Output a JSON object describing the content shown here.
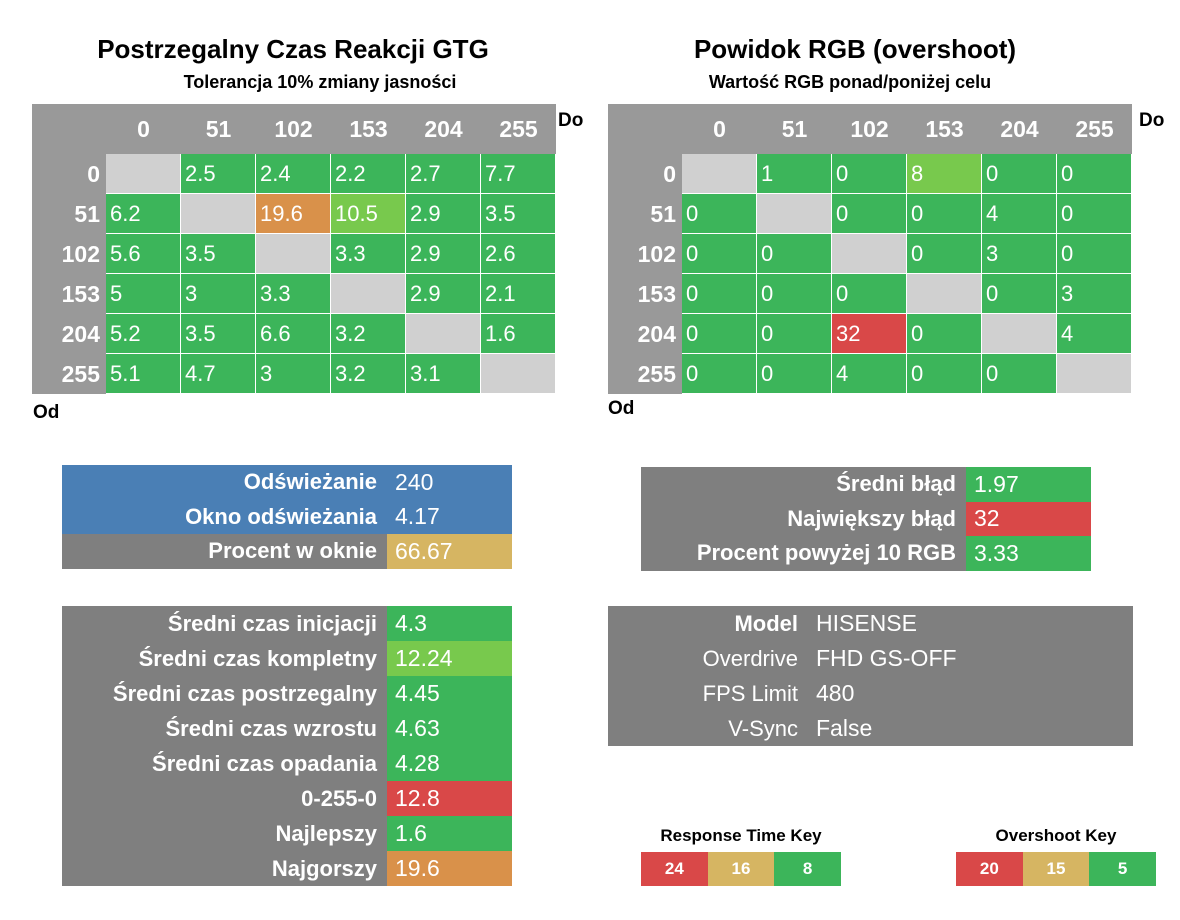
{
  "colors": {
    "green": "#3cb55a",
    "light_green": "#78c94d",
    "orange": "#d9914a",
    "red": "#d94848",
    "yellow": "#d6b562",
    "gray_header": "#999999",
    "gray_panel": "#7f7f7f",
    "diagonal": "#d0d0d0",
    "blue": "#4a7fb5"
  },
  "chart_data": [
    {
      "type": "heatmap",
      "title": "Postrzegalny Czas Reakcji GTG",
      "subtitle": "Tolerancja 10% zmiany jasności",
      "xlabel": "Do",
      "ylabel": "Od",
      "x_categories": [
        "0",
        "51",
        "102",
        "153",
        "204",
        "255"
      ],
      "y_categories": [
        "0",
        "51",
        "102",
        "153",
        "204",
        "255"
      ],
      "values": [
        [
          null,
          2.5,
          2.4,
          2.2,
          2.7,
          7.7
        ],
        [
          6.2,
          null,
          19.6,
          10.5,
          2.9,
          3.5
        ],
        [
          5.6,
          3.5,
          null,
          3.3,
          2.9,
          2.6
        ],
        [
          5,
          3,
          3.3,
          null,
          2.9,
          2.1
        ],
        [
          5.2,
          3.5,
          6.6,
          3.2,
          null,
          1.6
        ],
        [
          5.1,
          4.7,
          3,
          3.2,
          3.1,
          null
        ]
      ],
      "cell_colors": [
        [
          "diagonal",
          "green",
          "green",
          "green",
          "green",
          "green"
        ],
        [
          "green",
          "diagonal",
          "orange",
          "light_green",
          "green",
          "green"
        ],
        [
          "green",
          "green",
          "diagonal",
          "green",
          "green",
          "green"
        ],
        [
          "green",
          "green",
          "green",
          "diagonal",
          "green",
          "green"
        ],
        [
          "green",
          "green",
          "green",
          "green",
          "diagonal",
          "green"
        ],
        [
          "green",
          "green",
          "green",
          "green",
          "green",
          "diagonal"
        ]
      ]
    },
    {
      "type": "heatmap",
      "title": "Powidok RGB (overshoot)",
      "subtitle": "Wartość RGB ponad/poniżej celu",
      "xlabel": "Do",
      "ylabel": "Od",
      "x_categories": [
        "0",
        "51",
        "102",
        "153",
        "204",
        "255"
      ],
      "y_categories": [
        "0",
        "51",
        "102",
        "153",
        "204",
        "255"
      ],
      "values": [
        [
          null,
          1,
          0,
          8,
          0,
          0
        ],
        [
          0,
          null,
          0,
          0,
          4,
          0
        ],
        [
          0,
          0,
          null,
          0,
          3,
          0
        ],
        [
          0,
          0,
          0,
          null,
          0,
          3
        ],
        [
          0,
          0,
          32,
          0,
          null,
          4
        ],
        [
          0,
          0,
          4,
          0,
          0,
          null
        ]
      ],
      "cell_colors": [
        [
          "diagonal",
          "green",
          "green",
          "light_green",
          "green",
          "green"
        ],
        [
          "green",
          "diagonal",
          "green",
          "green",
          "green",
          "green"
        ],
        [
          "green",
          "green",
          "diagonal",
          "green",
          "green",
          "green"
        ],
        [
          "green",
          "green",
          "green",
          "diagonal",
          "green",
          "green"
        ],
        [
          "green",
          "green",
          "red",
          "green",
          "diagonal",
          "green"
        ],
        [
          "green",
          "green",
          "green",
          "green",
          "green",
          "diagonal"
        ]
      ]
    }
  ],
  "refresh_panel": {
    "rows": [
      {
        "label": "Odświeżanie",
        "value": "240",
        "label_bg": "blue",
        "value_bg": "blue"
      },
      {
        "label": "Okno odświeżania",
        "value": "4.17",
        "label_bg": "blue",
        "value_bg": "blue"
      },
      {
        "label": "Procent w oknie",
        "value": "66.67",
        "label_bg": "gray_panel",
        "value_bg": "yellow"
      }
    ]
  },
  "error_panel": {
    "rows": [
      {
        "label": "Średni błąd",
        "value": "1.97",
        "value_bg": "green"
      },
      {
        "label": "Największy błąd",
        "value": "32",
        "value_bg": "red"
      },
      {
        "label": "Procent powyżej 10 RGB",
        "value": "3.33",
        "value_bg": "green"
      }
    ]
  },
  "times_panel": {
    "rows": [
      {
        "label": "Średni czas inicjacji",
        "value": "4.3",
        "value_bg": "green"
      },
      {
        "label": "Średni czas kompletny",
        "value": "12.24",
        "value_bg": "light_green"
      },
      {
        "label": "Średni czas postrzegalny",
        "value": "4.45",
        "value_bg": "green"
      },
      {
        "label": "Średni czas wzrostu",
        "value": "4.63",
        "value_bg": "green"
      },
      {
        "label": "Średni czas opadania",
        "value": "4.28",
        "value_bg": "green"
      },
      {
        "label": "0-255-0",
        "value": "12.8",
        "value_bg": "red"
      },
      {
        "label": "Najlepszy",
        "value": "1.6",
        "value_bg": "green"
      },
      {
        "label": "Najgorszy",
        "value": "19.6",
        "value_bg": "orange"
      }
    ]
  },
  "info_panel": {
    "rows": [
      {
        "label": "Model",
        "value": "HISENSE",
        "bold": true
      },
      {
        "label": "Overdrive",
        "value": "FHD GS-OFF",
        "bold": false
      },
      {
        "label": "FPS Limit",
        "value": "480",
        "bold": false
      },
      {
        "label": "V-Sync",
        "value": "False",
        "bold": false
      }
    ]
  },
  "response_key": {
    "title": "Response Time Key",
    "items": [
      {
        "value": "24",
        "color": "red"
      },
      {
        "value": "16",
        "color": "yellow"
      },
      {
        "value": "8",
        "color": "green"
      }
    ]
  },
  "overshoot_key": {
    "title": "Overshoot Key",
    "items": [
      {
        "value": "20",
        "color": "red"
      },
      {
        "value": "15",
        "color": "yellow"
      },
      {
        "value": "5",
        "color": "green"
      }
    ]
  }
}
